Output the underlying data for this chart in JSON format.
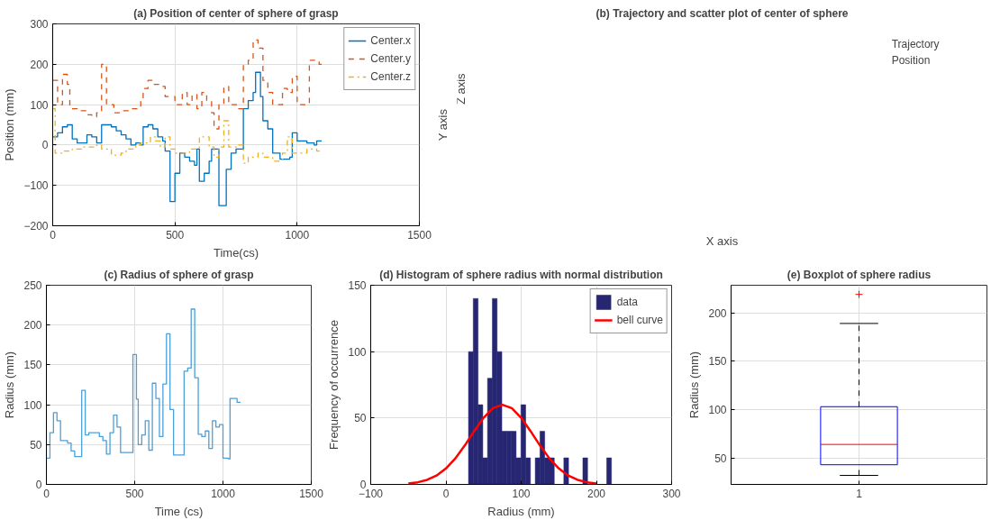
{
  "chart_data": [
    {
      "type": "step",
      "title": "(a) Position of center of sphere of grasp",
      "xlabel": "Time(cs)",
      "ylabel": "Position (mm)",
      "xlim": [
        0,
        1500
      ],
      "xticks": [
        0,
        500,
        1000,
        1500
      ],
      "ylim": [
        -200,
        300
      ],
      "yticks": [
        -200,
        -100,
        0,
        100,
        200,
        300
      ],
      "grid": true,
      "legend": "top right",
      "series": [
        {
          "name": "Center.x",
          "color": "#0072bd",
          "line_style": "solid",
          "x": [
            0,
            20,
            40,
            60,
            80,
            100,
            140,
            160,
            180,
            200,
            240,
            260,
            280,
            300,
            320,
            340,
            360,
            370,
            390,
            410,
            430,
            450,
            460,
            480,
            500,
            520,
            540,
            560,
            580,
            590,
            600,
            620,
            640,
            650,
            680,
            710,
            730,
            750,
            780,
            800,
            820,
            830,
            850,
            860,
            880,
            900,
            930,
            970,
            980,
            1000,
            1040,
            1070,
            1080,
            1100
          ],
          "values": [
            20,
            30,
            45,
            50,
            15,
            5,
            25,
            20,
            5,
            50,
            45,
            35,
            25,
            15,
            0,
            5,
            0,
            45,
            50,
            40,
            20,
            10,
            -15,
            -140,
            -70,
            -20,
            -30,
            -40,
            -50,
            -10,
            -90,
            -70,
            -40,
            -10,
            -150,
            -60,
            -20,
            -10,
            90,
            110,
            130,
            180,
            120,
            60,
            40,
            -20,
            -35,
            -30,
            30,
            10,
            5,
            0,
            10,
            10
          ]
        },
        {
          "name": "Center.y",
          "color": "#d95319",
          "line_style": "dashed",
          "x": [
            0,
            20,
            40,
            60,
            70,
            100,
            140,
            160,
            180,
            200,
            220,
            250,
            290,
            320,
            360,
            370,
            390,
            410,
            440,
            460,
            500,
            530,
            550,
            570,
            590,
            610,
            630,
            650,
            660,
            680,
            700,
            720,
            760,
            780,
            800,
            820,
            840,
            860,
            880,
            900,
            940,
            960,
            980,
            1000,
            1040,
            1050,
            1090,
            1100
          ],
          "values": [
            160,
            100,
            175,
            150,
            90,
            85,
            75,
            70,
            80,
            200,
            100,
            80,
            85,
            90,
            110,
            140,
            160,
            150,
            145,
            120,
            100,
            130,
            100,
            125,
            90,
            130,
            110,
            80,
            40,
            100,
            145,
            100,
            90,
            200,
            210,
            260,
            240,
            160,
            130,
            100,
            140,
            130,
            170,
            100,
            105,
            210,
            200,
            200
          ]
        },
        {
          "name": "Center.z",
          "color": "#edb120",
          "line_style": "dashdot",
          "x": [
            0,
            10,
            40,
            80,
            120,
            180,
            200,
            240,
            280,
            300,
            340,
            360,
            400,
            420,
            440,
            460,
            480,
            500,
            560,
            600,
            640,
            660,
            680,
            700,
            720,
            760,
            780,
            800,
            840,
            860,
            900,
            940,
            960,
            980,
            1040,
            1080,
            1100
          ],
          "values": [
            90,
            -20,
            -15,
            -10,
            -5,
            0,
            -10,
            -25,
            -20,
            -10,
            0,
            5,
            20,
            10,
            -5,
            20,
            -10,
            -20,
            -10,
            20,
            -5,
            -30,
            -5,
            60,
            -5,
            0,
            -45,
            -30,
            -20,
            -30,
            -40,
            -20,
            20,
            -20,
            -10,
            -15,
            -15
          ]
        }
      ]
    },
    {
      "type": "other",
      "title": "(b) Trajectory and scatter plot of center of sphere",
      "xlabel": "X axis",
      "ylabel": "Y axis",
      "annotations": [
        "Z axis",
        "Trajectory",
        "Position"
      ]
    },
    {
      "type": "step",
      "title": "(c) Radius of sphere of grasp",
      "xlabel": "Time (cs)",
      "ylabel": "Radius (mm)",
      "xlim": [
        0,
        1500
      ],
      "xticks": [
        0,
        500,
        1000,
        1500
      ],
      "ylim": [
        0,
        250
      ],
      "yticks": [
        0,
        50,
        100,
        150,
        200,
        250
      ],
      "grid": true,
      "series": [
        {
          "color": "#4c9fd8",
          "x": [
            0,
            20,
            40,
            60,
            80,
            120,
            140,
            160,
            200,
            220,
            240,
            300,
            320,
            340,
            360,
            380,
            400,
            420,
            460,
            490,
            510,
            520,
            540,
            560,
            580,
            600,
            620,
            640,
            660,
            680,
            700,
            720,
            780,
            800,
            820,
            840,
            860,
            880,
            900,
            920,
            940,
            960,
            980,
            1000,
            1030,
            1040,
            1080,
            1100
          ],
          "values": [
            33,
            65,
            90,
            80,
            55,
            52,
            42,
            35,
            118,
            62,
            65,
            60,
            55,
            38,
            65,
            87,
            72,
            40,
            40,
            163,
            107,
            50,
            62,
            80,
            43,
            127,
            108,
            60,
            126,
            189,
            94,
            37,
            142,
            146,
            220,
            134,
            63,
            60,
            67,
            45,
            80,
            72,
            75,
            33,
            32,
            108,
            103,
            103
          ]
        }
      ]
    },
    {
      "type": "histogram",
      "title": "(d) Histogram of sphere radius with normal distribution",
      "xlabel": "Radius (mm)",
      "ylabel": "Frequency of occurrence",
      "xlim": [
        -100,
        300
      ],
      "xticks": [
        -100,
        0,
        100,
        200,
        300
      ],
      "ylim": [
        0,
        150
      ],
      "yticks": [
        0,
        50,
        100,
        150
      ],
      "grid": true,
      "legend": "top right",
      "series": [
        {
          "name": "data",
          "type": "histogram",
          "color": "#262673",
          "bins": [
            30,
            36.3,
            42.7,
            49,
            55.3,
            61.7,
            68,
            74.3,
            80.7,
            87,
            93.3,
            99.7,
            106,
            112.3,
            118.7,
            125,
            131.3,
            137.7,
            144,
            150.3,
            156.7,
            163,
            169.3,
            175.7,
            182,
            188.3,
            194.7,
            201,
            207.3,
            213.7,
            220
          ],
          "values": [
            100,
            140,
            60,
            20,
            80,
            140,
            100,
            40,
            40,
            40,
            20,
            60,
            20,
            0,
            20,
            40,
            20,
            20,
            0,
            0,
            20,
            0,
            0,
            0,
            20,
            0,
            0,
            0,
            0,
            20
          ]
        },
        {
          "name": "bell curve",
          "type": "line",
          "color": "#ff0000",
          "x": [
            -50,
            -37.5,
            -25,
            -12.5,
            0,
            12.5,
            25,
            37.5,
            50,
            62.5,
            75,
            87.5,
            100,
            112.5,
            125,
            137.5,
            150,
            162.5,
            175,
            187.5,
            200
          ],
          "values": [
            0.7,
            1.6,
            3.4,
            6.7,
            12,
            19.6,
            29.3,
            40.1,
            50.2,
            57.4,
            60,
            57.4,
            50.2,
            40.1,
            29.3,
            19.6,
            12,
            6.7,
            3.4,
            1.6,
            0.7
          ]
        }
      ]
    },
    {
      "type": "box",
      "title": "(e) Boxplot of sphere radius",
      "ylabel": "Radius (mm)",
      "categories": [
        "1"
      ],
      "ylim": [
        22.7,
        228.5
      ],
      "yticks": [
        50,
        100,
        150,
        200
      ],
      "grid": true,
      "boxes": [
        {
          "low": 32,
          "q1": 43,
          "median": 64,
          "q3": 103,
          "high": 189,
          "outliers": [
            219
          ]
        }
      ]
    }
  ]
}
